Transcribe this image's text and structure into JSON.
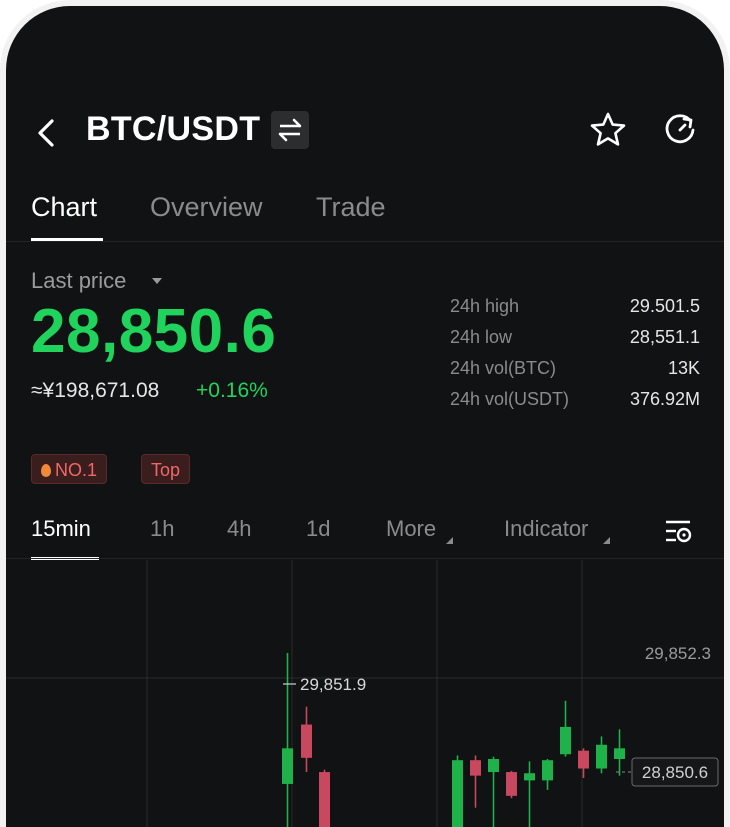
{
  "header": {
    "title": "BTC/USDT",
    "back_icon": "chevron-left-icon",
    "swap_icon": "swap-arrows-icon",
    "favorite_icon": "star-outline-icon",
    "refresh_icon": "refresh-icon"
  },
  "tabs": [
    {
      "label": "Chart",
      "active": true
    },
    {
      "label": "Overview",
      "active": false
    },
    {
      "label": "Trade",
      "active": false
    }
  ],
  "price_block": {
    "last_price_label": "Last price",
    "last_price": "28,850.6",
    "cny_equivalent": "≈¥198,671.08",
    "change_pct": "+0.16%",
    "price_color": "#20d35c"
  },
  "stats": [
    {
      "label": "24h high",
      "value": "29.501.5"
    },
    {
      "label": "24h low",
      "value": "28,551.1"
    },
    {
      "label": "24h vol(BTC)",
      "value": "13K"
    },
    {
      "label": "24h vol(USDT)",
      "value": "376.92M"
    }
  ],
  "badges": [
    {
      "label": "NO.1",
      "icon": "flame-icon"
    },
    {
      "label": "Top"
    }
  ],
  "timeframes": [
    {
      "label": "15min",
      "active": true
    },
    {
      "label": "1h",
      "active": false
    },
    {
      "label": "4h",
      "active": false
    },
    {
      "label": "1d",
      "active": false
    },
    {
      "label": "More",
      "dropdown": true
    },
    {
      "label": "Indicator",
      "dropdown": true
    }
  ],
  "chart_settings_icon": "chart-settings-icon",
  "chart_data": {
    "type": "candlestick",
    "price_labels": {
      "upper": "29,852.3",
      "current": "28,850.6",
      "high_marker": "29,851.9"
    },
    "y_scale": {
      "top_value": 29852.3,
      "current_value": 28850.6
    },
    "up_color": "#1fb14a",
    "down_color": "#c7485f",
    "candles": [
      {
        "o": 28750,
        "c": 29050,
        "h": 29852,
        "l": 28200,
        "dir": "up"
      },
      {
        "o": 29250,
        "c": 28970,
        "h": 29400,
        "l": 28850,
        "dir": "down"
      },
      {
        "o": 28850,
        "c": 28300,
        "h": 28870,
        "l": 28150,
        "dir": "down"
      },
      {
        "o": 28350,
        "c": 28950,
        "h": 28990,
        "l": 28100,
        "dir": "up"
      },
      {
        "o": 28950,
        "c": 28820,
        "h": 28990,
        "l": 28550,
        "dir": "down"
      },
      {
        "o": 28850,
        "c": 28960,
        "h": 28980,
        "l": 28150,
        "dir": "up"
      },
      {
        "o": 28850,
        "c": 28650,
        "h": 28860,
        "l": 28630,
        "dir": "down"
      },
      {
        "o": 28780,
        "c": 28840,
        "h": 28940,
        "l": 28350,
        "dir": "up"
      },
      {
        "o": 28780,
        "c": 28950,
        "h": 28960,
        "l": 28700,
        "dir": "up"
      },
      {
        "o": 29000,
        "c": 29230,
        "h": 29450,
        "l": 28980,
        "dir": "up"
      },
      {
        "o": 29030,
        "c": 28880,
        "h": 29050,
        "l": 28800,
        "dir": "down"
      },
      {
        "o": 28880,
        "c": 29080,
        "h": 29150,
        "l": 28840,
        "dir": "up"
      },
      {
        "o": 28960,
        "c": 29050,
        "h": 29210,
        "l": 28820,
        "dir": "up"
      }
    ]
  }
}
